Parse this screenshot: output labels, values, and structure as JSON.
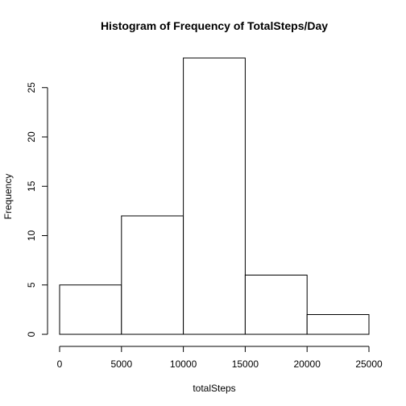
{
  "chart_data": {
    "type": "bar",
    "title": "Histogram of Frequency of TotalSteps/Day",
    "xlabel": "totalSteps",
    "ylabel": "Frequency",
    "bins": [
      {
        "start": 0,
        "end": 5000,
        "count": 5
      },
      {
        "start": 5000,
        "end": 10000,
        "count": 12
      },
      {
        "start": 10000,
        "end": 15000,
        "count": 28
      },
      {
        "start": 15000,
        "end": 20000,
        "count": 6
      },
      {
        "start": 20000,
        "end": 25000,
        "count": 2
      }
    ],
    "xlim": [
      0,
      25000
    ],
    "ylim": [
      0,
      28
    ],
    "x_ticks": [
      0,
      5000,
      10000,
      15000,
      20000,
      25000
    ],
    "y_ticks": [
      0,
      5,
      10,
      15,
      20,
      25
    ],
    "grid": false,
    "colors": {
      "bar_fill": "#ffffff",
      "bar_stroke": "#000000"
    }
  }
}
